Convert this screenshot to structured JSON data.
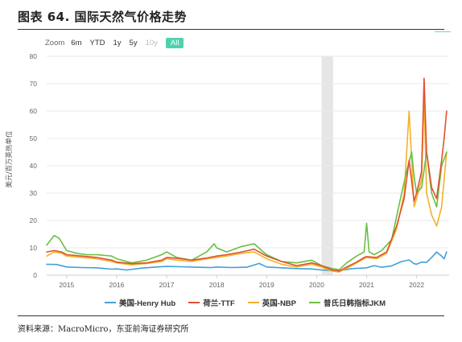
{
  "header": {
    "title": "图表 64. 国际天然气价格走势"
  },
  "zoom": {
    "label": "Zoom",
    "buttons": [
      {
        "label": "6m",
        "state": "normal"
      },
      {
        "label": "YTD",
        "state": "normal"
      },
      {
        "label": "1y",
        "state": "normal"
      },
      {
        "label": "5y",
        "state": "normal"
      },
      {
        "label": "10y",
        "state": "disabled"
      },
      {
        "label": "All",
        "state": "active"
      }
    ]
  },
  "footer": {
    "source": "资料来源：MacroMicro，东亚前海证券研究所"
  },
  "colors": {
    "henry_hub": "#41a0d8",
    "ttf": "#e0522d",
    "nbp": "#f5b12a",
    "jkm": "#69c043",
    "shade": "#e6e6e6",
    "grid": "#e9e9e9"
  },
  "chart_data": {
    "type": "line",
    "ylabel": "美元/百万英热单位",
    "xlabel": "",
    "ylim": [
      0,
      80
    ],
    "yticks": [
      0,
      10,
      20,
      30,
      40,
      50,
      60,
      70,
      80
    ],
    "xlim": [
      2014.6,
      2022.65
    ],
    "xticks": [
      {
        "label": "2015",
        "value": 2015
      },
      {
        "label": "2016",
        "value": 2016
      },
      {
        "label": "2017",
        "value": 2017
      },
      {
        "label": "2018",
        "value": 2018
      },
      {
        "label": "2019",
        "value": 2019
      },
      {
        "label": "2020",
        "value": 2020
      },
      {
        "label": "2021",
        "value": 2021
      },
      {
        "label": "2022",
        "value": 2022
      }
    ],
    "shaded_range": [
      2020.1,
      2020.33
    ],
    "grid": "horizontal",
    "legend_position": "bottom",
    "series": [
      {
        "name": "美国-Henry Hub",
        "color": "#41a0d8",
        "x": [
          2014.6,
          2014.8,
          2015.0,
          2015.3,
          2015.6,
          2015.9,
          2016.0,
          2016.2,
          2016.5,
          2016.8,
          2017.0,
          2017.3,
          2017.6,
          2017.9,
          2018.0,
          2018.3,
          2018.6,
          2018.85,
          2019.0,
          2019.3,
          2019.6,
          2019.9,
          2020.1,
          2020.3,
          2020.45,
          2020.7,
          2020.9,
          2021.0,
          2021.15,
          2021.3,
          2021.5,
          2021.7,
          2021.85,
          2021.95,
          2022.0,
          2022.1,
          2022.2,
          2022.3,
          2022.4,
          2022.5,
          2022.55,
          2022.6
        ],
        "y": [
          4.0,
          3.9,
          3.0,
          2.8,
          2.7,
          2.2,
          2.3,
          1.9,
          2.6,
          3.0,
          3.2,
          3.1,
          2.9,
          2.8,
          3.0,
          2.8,
          2.9,
          4.3,
          3.0,
          2.7,
          2.4,
          2.3,
          1.9,
          1.7,
          1.6,
          2.4,
          2.6,
          2.7,
          3.5,
          2.9,
          3.4,
          5.0,
          5.6,
          4.2,
          4.0,
          4.8,
          4.7,
          6.5,
          8.5,
          7.0,
          6.0,
          8.5
        ]
      },
      {
        "name": "荷兰-TTF",
        "color": "#e0522d",
        "x": [
          2014.6,
          2014.75,
          2014.9,
          2015.0,
          2015.3,
          2015.6,
          2015.9,
          2016.0,
          2016.3,
          2016.6,
          2016.9,
          2017.0,
          2017.2,
          2017.5,
          2017.8,
          2018.0,
          2018.2,
          2018.5,
          2018.75,
          2018.9,
          2019.0,
          2019.3,
          2019.6,
          2019.9,
          2020.1,
          2020.3,
          2020.45,
          2020.6,
          2020.8,
          2020.95,
          2021.0,
          2021.2,
          2021.4,
          2021.6,
          2021.75,
          2021.85,
          2021.95,
          2022.0,
          2022.1,
          2022.15,
          2022.2,
          2022.3,
          2022.4,
          2022.5,
          2022.55,
          2022.6
        ],
        "y": [
          8.5,
          9.0,
          8.5,
          7.5,
          7.0,
          6.5,
          5.5,
          4.8,
          4.2,
          4.5,
          5.5,
          6.5,
          6.2,
          5.5,
          6.3,
          7.0,
          7.5,
          8.5,
          9.5,
          8.0,
          7.0,
          5.0,
          3.5,
          4.5,
          3.5,
          2.0,
          1.5,
          3.0,
          4.8,
          6.5,
          6.8,
          6.5,
          8.5,
          18.0,
          28.0,
          42.0,
          27.0,
          30.0,
          38.0,
          72.0,
          45.0,
          32.0,
          28.0,
          42.0,
          50.0,
          60.0
        ]
      },
      {
        "name": "英国-NBP",
        "color": "#f5b12a",
        "x": [
          2014.6,
          2014.75,
          2014.9,
          2015.0,
          2015.3,
          2015.6,
          2015.9,
          2016.0,
          2016.3,
          2016.6,
          2016.9,
          2017.0,
          2017.2,
          2017.5,
          2017.8,
          2018.0,
          2018.2,
          2018.5,
          2018.75,
          2018.9,
          2019.0,
          2019.3,
          2019.6,
          2019.9,
          2020.1,
          2020.3,
          2020.45,
          2020.6,
          2020.8,
          2020.95,
          2021.0,
          2021.2,
          2021.4,
          2021.6,
          2021.75,
          2021.85,
          2021.95,
          2022.0,
          2022.1,
          2022.15,
          2022.2,
          2022.3,
          2022.4,
          2022.5,
          2022.55,
          2022.6
        ],
        "y": [
          7.0,
          8.5,
          8.0,
          7.0,
          6.5,
          6.0,
          5.0,
          4.5,
          3.8,
          4.3,
          5.0,
          6.0,
          5.5,
          5.0,
          6.0,
          6.5,
          7.0,
          8.0,
          8.5,
          7.0,
          6.0,
          4.0,
          3.0,
          4.0,
          3.0,
          1.5,
          1.2,
          2.5,
          4.5,
          6.0,
          6.5,
          6.0,
          8.0,
          17.0,
          30.0,
          60.0,
          25.0,
          28.0,
          35.0,
          65.0,
          30.0,
          22.0,
          18.0,
          25.0,
          35.0,
          45.0
        ]
      },
      {
        "name": "普氏日韩指标JKM",
        "color": "#69c043",
        "x": [
          2014.6,
          2014.75,
          2014.85,
          2015.0,
          2015.2,
          2015.4,
          2015.6,
          2015.9,
          2016.0,
          2016.3,
          2016.6,
          2016.9,
          2017.0,
          2017.2,
          2017.5,
          2017.8,
          2017.95,
          2018.0,
          2018.2,
          2018.5,
          2018.75,
          2018.9,
          2019.0,
          2019.3,
          2019.6,
          2019.9,
          2020.1,
          2020.3,
          2020.45,
          2020.6,
          2020.8,
          2020.95,
          2021.0,
          2021.05,
          2021.15,
          2021.3,
          2021.5,
          2021.7,
          2021.8,
          2021.9,
          2021.95,
          2022.0,
          2022.1,
          2022.2,
          2022.3,
          2022.4,
          2022.5,
          2022.6
        ],
        "y": [
          11.0,
          14.5,
          13.5,
          9.0,
          8.0,
          7.5,
          7.5,
          7.0,
          6.0,
          4.5,
          5.5,
          7.5,
          8.5,
          6.5,
          5.5,
          8.5,
          11.5,
          10.0,
          8.5,
          10.5,
          11.5,
          9.0,
          7.5,
          5.0,
          4.5,
          5.5,
          3.5,
          2.5,
          2.0,
          4.5,
          7.0,
          8.5,
          19.0,
          8.5,
          7.5,
          9.0,
          13.0,
          30.0,
          38.0,
          45.0,
          36.0,
          30.0,
          32.0,
          45.0,
          30.0,
          25.0,
          40.0,
          45.0
        ]
      }
    ]
  }
}
